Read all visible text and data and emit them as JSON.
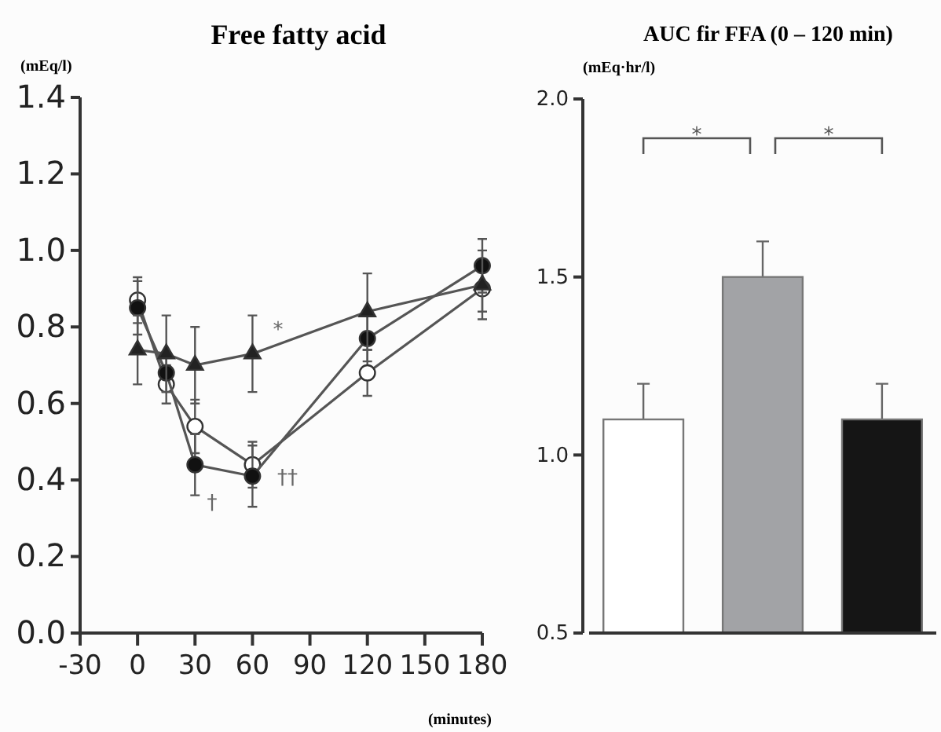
{
  "chart_data": [
    {
      "type": "line",
      "title": "Free fatty acid",
      "ylabel": "(mEq/l)",
      "xlabel": "(minutes)",
      "x": [
        0,
        15,
        30,
        60,
        120,
        180
      ],
      "xlim": [
        -30,
        180
      ],
      "xticks": [
        -30,
        0,
        30,
        60,
        90,
        120,
        150,
        180
      ],
      "ylim": [
        0,
        1.4
      ],
      "yticks": [
        {
          "value": 0,
          "label": "0.0"
        },
        0.2,
        0.4,
        0.6,
        0.8,
        {
          "value": 1,
          "label": "1.0"
        },
        1.2,
        1.4
      ],
      "grid": false,
      "line_style": "solid",
      "series": [
        {
          "color": "#ffffff",
          "marker": "circle",
          "values": [
            0.87,
            0.65,
            0.54,
            0.44,
            0.68,
            0.9
          ],
          "errors": [
            0.06,
            0.05,
            0.07,
            0.06,
            0.06,
            0.06
          ]
        },
        {
          "color": "#111111",
          "marker": "circle",
          "values": [
            0.85,
            0.68,
            0.44,
            0.41,
            0.77,
            0.96
          ],
          "errors": [
            0.07,
            0.05,
            0.08,
            0.08,
            0.06,
            0.07
          ]
        },
        {
          "color": "#222222",
          "marker": "triangle",
          "values": [
            0.74,
            0.73,
            0.7,
            0.73,
            0.84,
            0.91
          ],
          "errors": [
            0.09,
            0.1,
            0.1,
            0.1,
            0.1,
            0.09
          ]
        }
      ],
      "annotations": [
        "*",
        "†",
        "††"
      ]
    },
    {
      "type": "bar",
      "title": "AUC fir FFA (0 – 120 min)",
      "ylabel": "(mEq·hr/l)",
      "categories": [
        null,
        null,
        null
      ],
      "values": [
        1.1,
        1.5,
        1.1
      ],
      "colors": [
        "#ffffff",
        "#a2a3a6",
        "#151515"
      ],
      "errors": [
        0.1,
        0.1,
        0.1
      ],
      "ylim": [
        0.5,
        2.0
      ],
      "yticks": [
        {
          "value": 0.5,
          "label": "0.5"
        },
        {
          "value": 1,
          "label": "1.0"
        },
        1.5,
        {
          "value": 2,
          "label": "2.0"
        }
      ],
      "tick_labels": "y",
      "grid": false,
      "annotations": [
        "*",
        "*"
      ]
    }
  ]
}
